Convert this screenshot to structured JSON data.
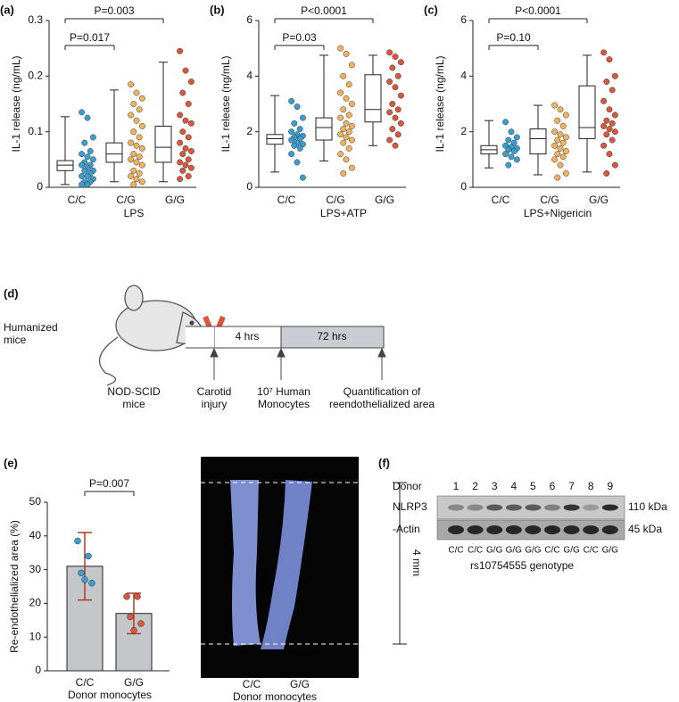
{
  "chart_data": [
    {
      "type": "box",
      "panel": "(a)",
      "ylabel": "IL-1  release (ng/mL)",
      "xlabel": "LPS",
      "categories": [
        "C/C",
        "C/G",
        "G/G"
      ],
      "ylim": [
        0,
        0.3
      ],
      "yticks": [
        0,
        0.1,
        0.2,
        0.3
      ],
      "annotations": [
        "P=0.017",
        "P=0.003"
      ],
      "groups": [
        {
          "color": "#3a9fd0",
          "box": [
            0.005,
            0.03,
            0.04,
            0.048,
            0.127
          ],
          "points": [
            0.135,
            0.125,
            0.09,
            0.08,
            0.065,
            0.06,
            0.055,
            0.05,
            0.045,
            0.04,
            0.04,
            0.035,
            0.03,
            0.03,
            0.025,
            0.02,
            0.02,
            0.015,
            0.01,
            0.01,
            0.005,
            0.005
          ]
        },
        {
          "color": "#f2b25c",
          "box": [
            0.01,
            0.045,
            0.06,
            0.08,
            0.175
          ],
          "points": [
            0.185,
            0.17,
            0.16,
            0.15,
            0.14,
            0.13,
            0.12,
            0.11,
            0.1,
            0.09,
            0.08,
            0.075,
            0.07,
            0.06,
            0.055,
            0.05,
            0.045,
            0.04,
            0.03,
            0.025,
            0.02,
            0.015,
            0.01,
            0.005
          ]
        },
        {
          "color": "#d9573a",
          "box": [
            0.01,
            0.045,
            0.072,
            0.11,
            0.225
          ],
          "points": [
            0.245,
            0.21,
            0.19,
            0.17,
            0.15,
            0.13,
            0.12,
            0.115,
            0.1,
            0.09,
            0.08,
            0.07,
            0.065,
            0.06,
            0.05,
            0.045,
            0.04,
            0.035,
            0.03,
            0.02,
            0.015
          ]
        }
      ]
    },
    {
      "type": "box",
      "panel": "(b)",
      "ylabel": "IL-1  release (ng/mL)",
      "xlabel": "LPS+ATP",
      "categories": [
        "C/C",
        "C/G",
        "G/G"
      ],
      "ylim": [
        0,
        6
      ],
      "yticks": [
        0,
        2,
        4,
        6
      ],
      "annotations": [
        "P=0.03",
        "P<0.0001"
      ],
      "groups": [
        {
          "color": "#3a9fd0",
          "box": [
            0.55,
            1.55,
            1.75,
            1.9,
            3.3
          ],
          "points": [
            3.1,
            2.9,
            2.5,
            2.3,
            2.1,
            2.0,
            1.9,
            1.85,
            1.8,
            1.75,
            1.7,
            1.6,
            1.55,
            1.5,
            1.4,
            1.2,
            0.9,
            0.35
          ]
        },
        {
          "color": "#f2b25c",
          "box": [
            0.95,
            1.7,
            2.15,
            2.5,
            4.75
          ],
          "points": [
            5.0,
            4.8,
            4.4,
            4.0,
            3.7,
            3.4,
            3.2,
            3.0,
            2.8,
            2.6,
            2.5,
            2.3,
            2.2,
            2.1,
            2.0,
            1.9,
            1.8,
            1.7,
            1.6,
            1.4,
            1.2,
            1.0,
            0.7,
            0.5
          ]
        },
        {
          "color": "#d9573a",
          "box": [
            1.5,
            2.35,
            2.8,
            4.05,
            4.75
          ],
          "points": [
            4.85,
            4.7,
            4.5,
            4.3,
            4.0,
            3.8,
            3.6,
            3.3,
            3.0,
            2.8,
            2.7,
            2.5,
            2.3,
            2.1,
            1.9,
            1.7,
            1.5
          ]
        }
      ]
    },
    {
      "type": "box",
      "panel": "(c)",
      "ylabel": "IL-1  release (ng/mL)",
      "xlabel": "LPS+Nigericin",
      "categories": [
        "C/C",
        "C/G",
        "G/G"
      ],
      "ylim": [
        0,
        6
      ],
      "yticks": [
        0,
        2,
        4,
        6
      ],
      "annotations": [
        "P=0.10",
        "P<0.0001"
      ],
      "groups": [
        {
          "color": "#3a9fd0",
          "box": [
            0.7,
            1.2,
            1.35,
            1.5,
            2.4
          ],
          "points": [
            2.35,
            2.0,
            1.8,
            1.7,
            1.6,
            1.5,
            1.45,
            1.4,
            1.35,
            1.3,
            1.2,
            1.1,
            1.0,
            0.8
          ]
        },
        {
          "color": "#f2b25c",
          "box": [
            0.45,
            1.2,
            1.75,
            2.1,
            2.95
          ],
          "points": [
            2.95,
            2.8,
            2.6,
            2.4,
            2.2,
            2.0,
            1.9,
            1.8,
            1.7,
            1.6,
            1.5,
            1.4,
            1.3,
            1.2,
            1.1,
            1.0,
            0.8,
            0.5,
            0.35
          ]
        },
        {
          "color": "#d9573a",
          "box": [
            0.55,
            1.75,
            2.15,
            3.65,
            4.75
          ],
          "points": [
            4.85,
            4.6,
            4.0,
            3.8,
            3.5,
            3.1,
            2.8,
            2.6,
            2.4,
            2.3,
            2.2,
            2.1,
            2.0,
            1.9,
            1.7,
            1.5,
            1.2,
            0.8,
            0.5
          ]
        }
      ]
    },
    {
      "type": "bar",
      "panel": "(e)",
      "ylabel": "Re-endothelialized area (%)",
      "xlabel": "Donor monocytes",
      "categories": [
        "C/C",
        "G/G"
      ],
      "values": [
        31,
        17
      ],
      "errors": [
        10,
        6
      ],
      "color": "#c3c7c9",
      "error_color": "#b03a22",
      "point_colors": [
        "#3a9fd0",
        "#d9573a"
      ],
      "points": [
        [
          38.5,
          34,
          29,
          26,
          27
        ],
        [
          22,
          22,
          16,
          14,
          12
        ]
      ],
      "ylim": [
        0,
        50
      ],
      "yticks": [
        0,
        10,
        20,
        30,
        40,
        50
      ],
      "annotations": [
        "P=0.007"
      ]
    }
  ],
  "diagram": {
    "panel": "(d)",
    "group": "Humanized mice",
    "mouse": "NOD-SCID mice",
    "phases": [
      "4 hrs",
      "72 hrs"
    ],
    "events": [
      "Carotid injury",
      "10⁷ Human Monocytes",
      "Quantification of reendothelialized area"
    ]
  },
  "image": {
    "scale": "4 mm",
    "labels": [
      "C/C",
      "G/G"
    ],
    "caption": "Donor monocytes"
  },
  "blot": {
    "panel": "(f)",
    "donor_label": "Donor",
    "donors": [
      1,
      2,
      3,
      4,
      5,
      6,
      7,
      8,
      9
    ],
    "rows": [
      {
        "name": "NLRP3",
        "size": "110 kDa"
      },
      {
        "name": "-Actin",
        "size": "45 kDa"
      }
    ],
    "genotypes": [
      "C/C",
      "C/C",
      "G/G",
      "G/G",
      "G/G",
      "C/C",
      "G/G",
      "C/C",
      "G/G"
    ],
    "caption": "rs10754555 genotype"
  }
}
